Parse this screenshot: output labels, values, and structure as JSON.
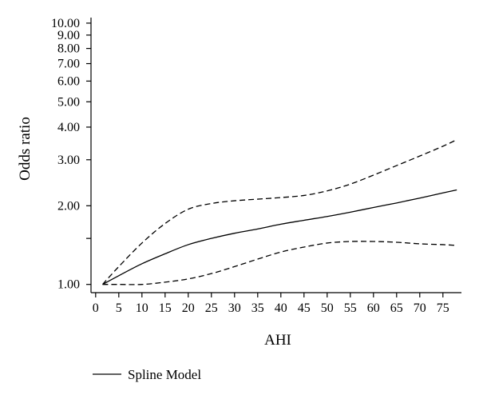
{
  "chart_data": {
    "type": "line",
    "xlabel": "AHI",
    "ylabel": "Odds ratio",
    "y_scale": "log",
    "xlim": [
      -1,
      79
    ],
    "ylim": [
      0.93,
      10.5
    ],
    "x_ticks": [
      0,
      5,
      10,
      15,
      20,
      25,
      30,
      35,
      40,
      45,
      50,
      55,
      60,
      65,
      70,
      75
    ],
    "x_tick_labels": [
      "0",
      "5",
      "10",
      "15",
      "20",
      "25",
      "30",
      "35",
      "40",
      "45",
      "50",
      "55",
      "60",
      "65",
      "70",
      "75"
    ],
    "y_ticks": [
      1,
      2,
      3,
      4,
      5,
      6,
      7,
      8,
      9,
      10
    ],
    "y_tick_labels": [
      "1.00",
      "2.00",
      "3.00",
      "4.00",
      "5.00",
      "6.00",
      "7.00",
      "8.00",
      "9.00",
      "10.00"
    ],
    "y_minor_ticks": [
      1.5
    ],
    "series": [
      {
        "name": "Spline Model",
        "style": "solid",
        "color": "#000000",
        "x": [
          1.5,
          5,
          10,
          15,
          20,
          25,
          30,
          35,
          40,
          45,
          50,
          55,
          60,
          65,
          70,
          75,
          78
        ],
        "y": [
          1.0,
          1.08,
          1.2,
          1.31,
          1.42,
          1.5,
          1.57,
          1.63,
          1.7,
          1.76,
          1.82,
          1.89,
          1.97,
          2.05,
          2.14,
          2.24,
          2.3
        ]
      },
      {
        "name": "",
        "style": "dashed",
        "color": "#000000",
        "x": [
          1.5,
          5,
          10,
          15,
          20,
          25,
          30,
          35,
          40,
          45,
          50,
          55,
          60,
          65,
          70,
          75,
          78
        ],
        "y": [
          1.0,
          1.17,
          1.44,
          1.71,
          1.94,
          2.04,
          2.09,
          2.12,
          2.15,
          2.19,
          2.28,
          2.42,
          2.62,
          2.85,
          3.1,
          3.38,
          3.58
        ]
      },
      {
        "name": "",
        "style": "dashed",
        "color": "#000000",
        "x": [
          1.5,
          5,
          10,
          15,
          20,
          25,
          30,
          35,
          40,
          45,
          50,
          55,
          60,
          65,
          70,
          75,
          78
        ],
        "y": [
          1.0,
          1.0,
          1.0,
          1.02,
          1.05,
          1.1,
          1.17,
          1.25,
          1.33,
          1.39,
          1.44,
          1.46,
          1.46,
          1.45,
          1.43,
          1.42,
          1.41
        ]
      }
    ],
    "legend": {
      "placement": "bottom-left",
      "entries": [
        "Spline Model"
      ]
    }
  }
}
